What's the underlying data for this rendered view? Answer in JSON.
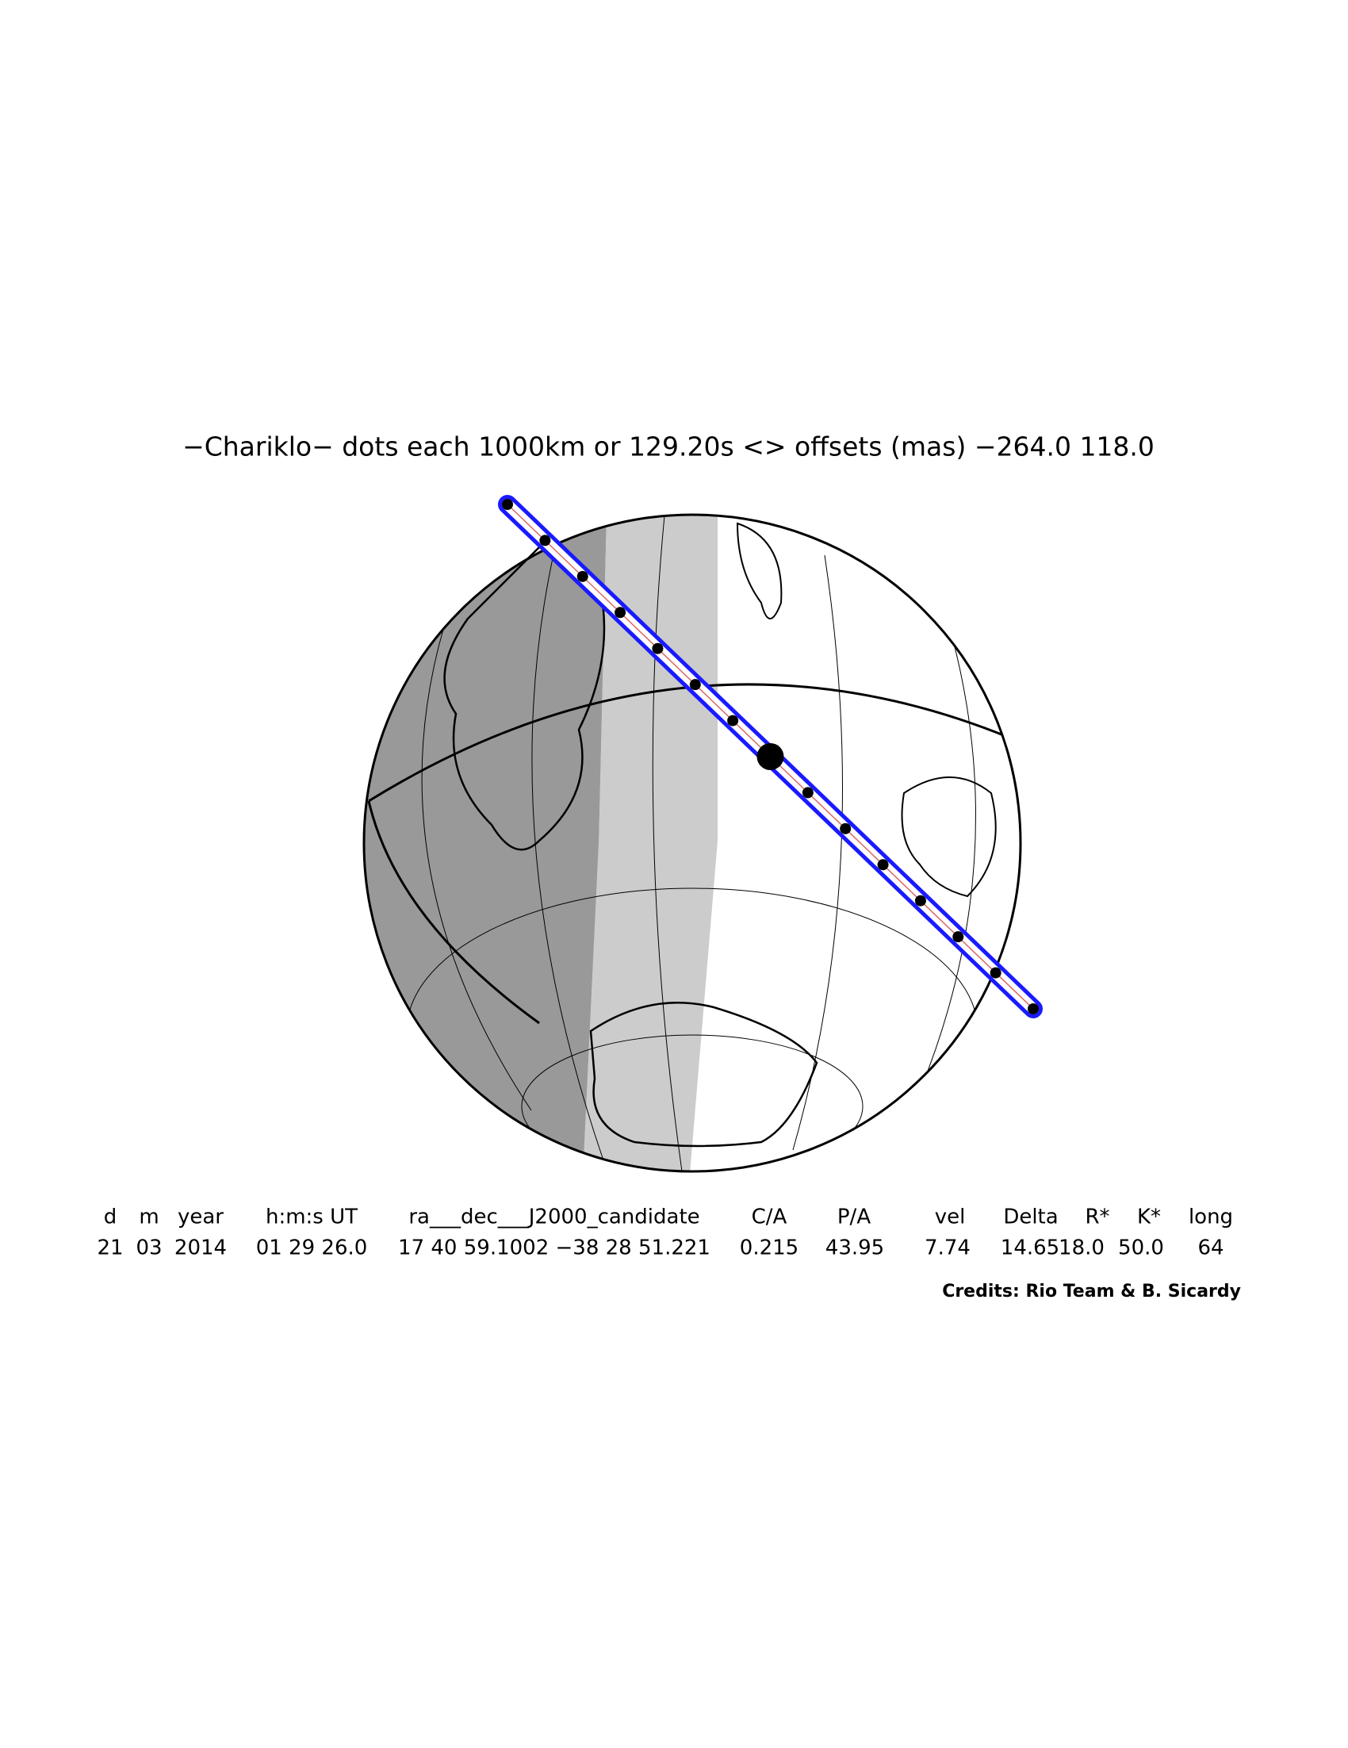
{
  "title": "−Chariklo− dots each 1000km or 129.20s <> offsets (mas) −264.0   118.0",
  "table": {
    "headers": [
      "d",
      "m",
      "year",
      "h:m:s UT",
      "ra___dec___J2000_candidate",
      "C/A",
      "P/A",
      "vel",
      "Delta",
      "R*",
      "K*",
      "long"
    ],
    "rows": [
      [
        "21",
        "03",
        "2014",
        "01 29 26.0",
        "17 40 59.1002 −38 28 51.221",
        "0.215",
        "43.95",
        "7.74",
        "14.65",
        "18.0",
        "50.0",
        "64"
      ]
    ]
  },
  "credits": "Credits: Rio Team & B. Sicardy"
}
